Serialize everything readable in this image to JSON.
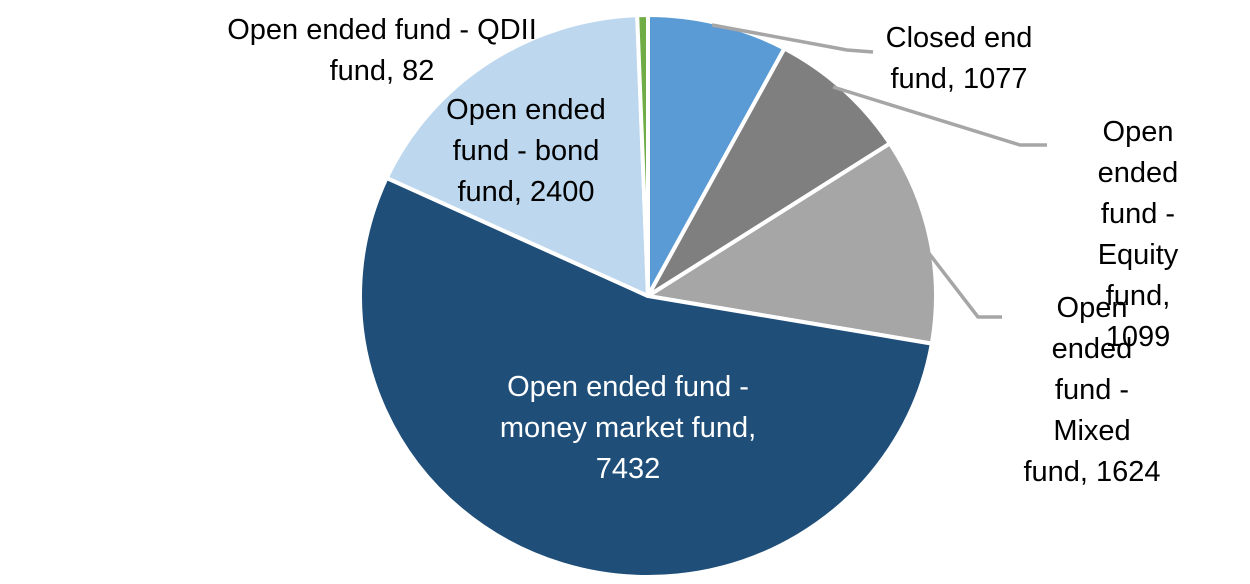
{
  "page": {
    "background_color": "#FFFFFF"
  },
  "chart_data": {
    "type": "pie",
    "title": "",
    "total": 13714,
    "start_angle_deg": 0,
    "direction": "clockwise",
    "legend_position": "none",
    "leader_line_color": "#A6A6A6",
    "slice_border_color": "#FFFFFF",
    "slices": [
      {
        "name": "Closed end fund",
        "value": 1077,
        "color": "#5B9BD5",
        "data_label": "Closed end fund, 1077"
      },
      {
        "name": "Open ended fund - Equity fund",
        "value": 1099,
        "color": "#7F7F7F",
        "data_label": "Open ended fund - Equity fund, 1099"
      },
      {
        "name": "Open ended fund - Mixed fund",
        "value": 1624,
        "color": "#A6A6A6",
        "data_label": "Open ended fund - Mixed fund, 1624"
      },
      {
        "name": "Open ended fund - money market fund",
        "value": 7432,
        "color": "#1F4E79",
        "data_label": "Open ended fund - money market fund, 7432"
      },
      {
        "name": "Open ended fund - bond fund",
        "value": 2400,
        "color": "#BDD7EE",
        "data_label": "Open ended fund - bond fund, 2400"
      },
      {
        "name": "Open ended fund - QDII fund",
        "value": 82,
        "color": "#70AD47",
        "data_label": "Open ended fund - QDII fund, 82"
      }
    ]
  },
  "labels": {
    "closed_end": {
      "lines": [
        "Closed end",
        "fund, 1077"
      ]
    },
    "equity": {
      "lines": [
        "Open ended",
        "fund - Equity",
        "fund, 1099"
      ]
    },
    "mixed": {
      "lines": [
        "Open ended",
        "fund - Mixed",
        "fund, 1624"
      ]
    },
    "money_market": {
      "lines": [
        "Open ended fund -",
        "money market fund,",
        "7432"
      ]
    },
    "bond": {
      "lines": [
        "Open ended",
        "fund - bond",
        "fund, 2400"
      ]
    },
    "qdii": {
      "lines": [
        "Open ended fund - QDII",
        "fund, 82"
      ]
    }
  }
}
